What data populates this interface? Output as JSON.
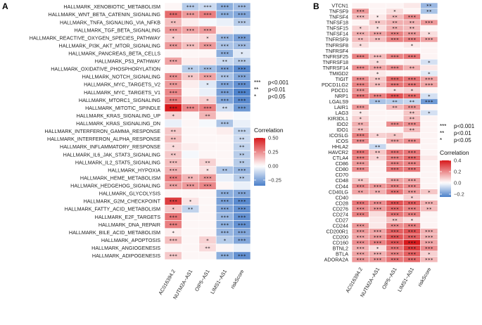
{
  "colors": {
    "high": "#d7191c",
    "mid": "#ffffff",
    "low": "#4a7fc9"
  },
  "chart_data": [
    {
      "type": "heatmap",
      "panel": "A",
      "rows": [
        "HALLMARK_XENOBIOTIC_METABOLISM",
        "HALLMARK_WNT_BETA_CATENIN_SIGNALING",
        "HALLMARK_TNFA_SIGNALING_VIA_NFKB",
        "HALLMARK_TGF_BETA_SIGNALING",
        "HALLMARK_REACTIVE_OXYGEN_SPECIES_PATHWAY",
        "HALLMARK_PI3K_AKT_MTOR_SIGNALING",
        "HALLMARK_PANCREAS_BETA_CELLS",
        "HALLMARK_P53_PATHWAY",
        "HALLMARK_OXIDATIVE_PHOSPHORYLATION",
        "HALLMARK_NOTCH_SIGNALING",
        "HALLMARK_MYC_TARGETS_V2",
        "HALLMARK_MYC_TARGETS_V1",
        "HALLMARK_MTORC1_SIGNALING",
        "HALLMARK_MITOTIC_SPINDLE",
        "HALLMARK_KRAS_SIGNALING_UP",
        "HALLMARK_KRAS_SIGNALING_DN",
        "HALLMARK_INTERFERON_GAMMA_RESPONSE",
        "HALLMARK_INTERFERON_ALPHA_RESPONSE",
        "HALLMARK_INFLAMMATORY_RESPONSE",
        "HALLMARK_IL6_JAK_STAT3_SIGNALING",
        "HALLMARK_IL2_STAT5_SIGNALING",
        "HALLMARK_HYPOXIA",
        "HALLMARK_HEME_METABOLISM",
        "HALLMARK_HEDGEHOG_SIGNALING",
        "HALLMARK_GLYCOLYSIS",
        "HALLMARK_G2M_CHECKPOINT",
        "HALLMARK_FATTY_ACID_METABOLISM",
        "HALLMARK_E2F_TARGETS",
        "HALLMARK_DNA_REPAIR",
        "HALLMARK_BILE_ACID_METABOLISM",
        "HALLMARK_APOPTOSIS",
        "HALLMARK_ANGIOGENESIS",
        "HALLMARK_ADIPOGENESIS"
      ],
      "columns": [
        "AC016394.2",
        "NUTM2A−AS1",
        "OIP5−AS1",
        "LIMS1−AS1",
        "riskScore"
      ],
      "values": [
        [
          0.02,
          -0.14,
          -0.1,
          -0.22,
          -0.18
        ],
        [
          0.32,
          0.22,
          0.28,
          -0.22,
          -0.24
        ],
        [
          0.14,
          0.04,
          -0.02,
          -0.04,
          -0.14
        ],
        [
          0.22,
          0.2,
          0.22,
          0.04,
          -0.04
        ],
        [
          0.1,
          0.06,
          0.08,
          -0.2,
          -0.26
        ],
        [
          0.22,
          0.14,
          0.22,
          -0.16,
          -0.18
        ],
        [
          0.02,
          0.02,
          0.02,
          -0.22,
          -0.06
        ],
        [
          0.2,
          0.04,
          0.06,
          -0.1,
          -0.14
        ],
        [
          0.02,
          -0.14,
          -0.18,
          -0.25,
          -0.32
        ],
        [
          0.24,
          0.12,
          0.2,
          -0.16,
          -0.24
        ],
        [
          0.22,
          0.04,
          -0.06,
          -0.24,
          -0.3
        ],
        [
          0.26,
          0.02,
          -0.04,
          -0.26,
          -0.34
        ],
        [
          0.28,
          0.06,
          0.1,
          -0.24,
          -0.32
        ],
        [
          0.5,
          0.26,
          0.28,
          -0.1,
          -0.28
        ],
        [
          0.1,
          0.02,
          0.16,
          0.02,
          -0.02
        ],
        [
          -0.04,
          0.02,
          -0.02,
          -0.16,
          -0.04
        ],
        [
          0.12,
          0.02,
          0.02,
          0.04,
          -0.12
        ],
        [
          0.14,
          0.02,
          0.02,
          0.02,
          -0.1
        ],
        [
          0.08,
          0.04,
          0.02,
          0.02,
          -0.12
        ],
        [
          0.12,
          -0.02,
          0.02,
          0.02,
          -0.14
        ],
        [
          0.14,
          0.02,
          0.1,
          0.02,
          -0.14
        ],
        [
          0.16,
          0.02,
          0.06,
          -0.16,
          -0.2
        ],
        [
          0.28,
          0.16,
          0.22,
          -0.04,
          -0.14
        ],
        [
          0.2,
          0.22,
          0.26,
          0.02,
          -0.04
        ],
        [
          0.02,
          0.02,
          0.02,
          -0.22,
          -0.24
        ],
        [
          0.42,
          0.06,
          0.02,
          -0.26,
          -0.32
        ],
        [
          0.12,
          -0.12,
          0.02,
          -0.24,
          -0.3
        ],
        [
          0.3,
          0.02,
          0.02,
          -0.2,
          -0.3
        ],
        [
          0.28,
          0.02,
          0.02,
          -0.22,
          -0.3
        ],
        [
          0.04,
          0.02,
          0.02,
          -0.2,
          -0.24
        ],
        [
          0.14,
          0.02,
          0.1,
          -0.14,
          -0.24
        ],
        [
          0.02,
          0.02,
          0.08,
          0.02,
          -0.04
        ],
        [
          0.12,
          0.02,
          0.02,
          -0.22,
          -0.3
        ]
      ],
      "stars": [
        [
          "",
          "***",
          "***",
          "***",
          "***"
        ],
        [
          "***",
          "***",
          "***",
          "***",
          "***"
        ],
        [
          "**",
          "",
          "",
          "",
          "***"
        ],
        [
          "***",
          "***",
          "***",
          "",
          ""
        ],
        [
          "*",
          "",
          "*",
          "***",
          "***"
        ],
        [
          "***",
          "***",
          "***",
          "***",
          "***"
        ],
        [
          "",
          "",
          "",
          "***",
          "*"
        ],
        [
          "***",
          "",
          "",
          "**",
          "***"
        ],
        [
          "",
          "**",
          "***",
          "***",
          "***"
        ],
        [
          "***",
          "**",
          "***",
          "***",
          "***"
        ],
        [
          "***",
          "",
          "*",
          "***",
          "***"
        ],
        [
          "***",
          "",
          "",
          "***",
          "***"
        ],
        [
          "***",
          "",
          "*",
          "***",
          "***"
        ],
        [
          "***",
          "***",
          "***",
          "**",
          "***"
        ],
        [
          "*",
          "",
          "**",
          "",
          ""
        ],
        [
          "",
          "",
          "",
          "***",
          ""
        ],
        [
          "**",
          "",
          "",
          "",
          "***"
        ],
        [
          "**",
          "",
          "",
          "",
          "**"
        ],
        [
          "*",
          "",
          "",
          "",
          "**"
        ],
        [
          "**",
          "",
          "",
          "",
          "**"
        ],
        [
          "***",
          "",
          "**",
          "",
          "**"
        ],
        [
          "***",
          "",
          "*",
          "**",
          "***"
        ],
        [
          "***",
          "**",
          "***",
          "",
          "**"
        ],
        [
          "***",
          "***",
          "***",
          "",
          ""
        ],
        [
          "",
          "",
          "",
          "***",
          "***"
        ],
        [
          "***",
          "*",
          "",
          "***",
          "***"
        ],
        [
          "*",
          "**",
          "",
          "***",
          "***"
        ],
        [
          "***",
          "",
          "",
          "***",
          "***"
        ],
        [
          "***",
          "",
          "",
          "***",
          "***"
        ],
        [
          "*",
          "",
          "",
          "***",
          "***"
        ],
        [
          "***",
          "",
          "*",
          "*",
          "***"
        ],
        [
          "",
          "",
          "**",
          "",
          ""
        ],
        [
          "***",
          "",
          "",
          "***",
          "***"
        ]
      ],
      "legend": {
        "title": "Correlation",
        "ticks": [
          0.5,
          0.25,
          0.0,
          -0.25
        ],
        "tick_labels": [
          "0.50",
          "0.25",
          "0.00",
          "−0.25"
        ],
        "range": [
          -0.35,
          0.5
        ]
      },
      "sig_legend": [
        {
          "stars": "***",
          "label": "p<0.001"
        },
        {
          "stars": "**",
          "label": "p<0.01"
        },
        {
          "stars": "*",
          "label": "p<0.05"
        }
      ]
    },
    {
      "type": "heatmap",
      "panel": "B",
      "rows": [
        "VTCN1",
        "TNFSF9",
        "TNFSF4",
        "TNFSF18",
        "TNFSF15",
        "TNFSF14",
        "TNFRSF9",
        "TNFRSF8",
        "TNFRSF4",
        "TNFRSF25",
        "TNFRSF18",
        "TNFRSF14",
        "TMIGD2",
        "TIGIT",
        "PDCD1LG2",
        "PDCD1",
        "NRP1",
        "LGALS9",
        "LAIR1",
        "LAG3",
        "KIR3DL1",
        "IDO2",
        "IDO1",
        "ICOSLG",
        "ICOS",
        "HHLA2",
        "HAVCR2",
        "CTLA4",
        "CD86",
        "CD80",
        "CD70",
        "CD48",
        "CD44",
        "CD40LG",
        "CD40",
        "CD28",
        "CD276",
        "CD274",
        "CD27",
        "CD244",
        "CD200R1",
        "CD200",
        "CD160",
        "BTNL2",
        "BTLA",
        "ADORA2A"
      ],
      "columns": [
        "AC016394.2",
        "NUTM2A−AS1",
        "OIP5−AS1",
        "LIMS1−AS1",
        "riskScore"
      ],
      "values": [
        [
          0.02,
          0.02,
          0.02,
          0.04,
          -0.14
        ],
        [
          0.18,
          0.02,
          0.06,
          0.02,
          -0.12
        ],
        [
          0.12,
          0.04,
          0.12,
          0.2,
          0.02
        ],
        [
          0.02,
          0.1,
          0.14,
          0.14,
          0.18
        ],
        [
          0.08,
          0.06,
          0.14,
          0.12,
          0.02
        ],
        [
          0.14,
          0.16,
          0.22,
          0.18,
          0.06
        ],
        [
          0.12,
          0.12,
          0.22,
          0.22,
          0.16
        ],
        [
          0.06,
          0.02,
          0.02,
          0.04,
          0.02
        ],
        [
          0.02,
          0.02,
          0.02,
          0.02,
          0.02
        ],
        [
          0.22,
          0.12,
          0.22,
          0.24,
          0.02
        ],
        [
          0.02,
          0.06,
          0.02,
          0.04,
          -0.06
        ],
        [
          0.2,
          0.16,
          0.2,
          0.14,
          0.04
        ],
        [
          0.02,
          0.04,
          0.02,
          0.02,
          -0.04
        ],
        [
          0.2,
          0.1,
          0.26,
          0.24,
          0.16
        ],
        [
          0.22,
          0.12,
          0.24,
          0.24,
          0.16
        ],
        [
          0.18,
          0.02,
          0.06,
          0.08,
          0.02
        ],
        [
          0.24,
          0.22,
          0.3,
          0.26,
          -0.06
        ],
        [
          0.02,
          -0.12,
          -0.1,
          -0.08,
          -0.2
        ],
        [
          0.18,
          0.02,
          0.12,
          0.18,
          0.02
        ],
        [
          0.04,
          0.02,
          0.02,
          0.1,
          -0.06
        ],
        [
          0.08,
          0.02,
          0.02,
          0.12,
          0.02
        ],
        [
          0.14,
          0.02,
          0.2,
          0.2,
          0.02
        ],
        [
          0.12,
          0.02,
          0.02,
          0.12,
          0.02
        ],
        [
          0.22,
          0.08,
          0.1,
          0.04,
          0.02
        ],
        [
          0.2,
          0.02,
          0.16,
          0.2,
          0.02
        ],
        [
          0.02,
          -0.08,
          0.02,
          0.02,
          0.02
        ],
        [
          0.24,
          0.1,
          0.24,
          0.24,
          0.02
        ],
        [
          0.22,
          0.08,
          0.22,
          0.26,
          0.04
        ],
        [
          0.18,
          0.02,
          0.22,
          0.22,
          0.02
        ],
        [
          0.2,
          0.02,
          0.24,
          0.24,
          0.02
        ],
        [
          0.02,
          0.02,
          0.02,
          0.02,
          0.02
        ],
        [
          0.1,
          0.02,
          0.16,
          0.16,
          0.02
        ],
        [
          0.2,
          0.18,
          0.22,
          0.2,
          0.02
        ],
        [
          0.16,
          0.14,
          0.24,
          0.18,
          0.1
        ],
        [
          0.02,
          0.02,
          0.02,
          0.08,
          0.02
        ],
        [
          0.24,
          0.2,
          0.3,
          0.28,
          0.14
        ],
        [
          0.2,
          0.18,
          0.26,
          0.22,
          0.12
        ],
        [
          0.22,
          0.06,
          0.24,
          0.22,
          0.02
        ],
        [
          0.02,
          0.04,
          0.1,
          0.06,
          0.02
        ],
        [
          0.18,
          0.04,
          0.2,
          0.22,
          0.02
        ],
        [
          0.18,
          0.16,
          0.28,
          0.3,
          0.14
        ],
        [
          0.16,
          0.18,
          0.3,
          0.28,
          0.14
        ],
        [
          0.2,
          0.22,
          0.3,
          0.4,
          0.16
        ],
        [
          0.14,
          0.06,
          0.24,
          0.34,
          0.2
        ],
        [
          0.16,
          0.14,
          0.22,
          0.28,
          0.08
        ],
        [
          0.18,
          0.18,
          0.24,
          0.26,
          0.12
        ]
      ],
      "stars": [
        [
          "",
          "",
          "",
          "",
          "**"
        ],
        [
          "***",
          "",
          "*",
          "",
          "**"
        ],
        [
          "***",
          "*",
          "**",
          "***",
          ""
        ],
        [
          "",
          "**",
          "**",
          "**",
          "***"
        ],
        [
          "*",
          "*",
          "**",
          "**",
          ""
        ],
        [
          "***",
          "***",
          "***",
          "***",
          "*"
        ],
        [
          "**",
          "**",
          "***",
          "***",
          "***"
        ],
        [
          "*",
          "",
          "",
          "*",
          ""
        ],
        [
          "",
          "",
          "",
          "",
          ""
        ],
        [
          "***",
          "***",
          "***",
          "***",
          ""
        ],
        [
          "",
          "*",
          "",
          "",
          "*"
        ],
        [
          "***",
          "***",
          "***",
          "**",
          ""
        ],
        [
          "",
          "*",
          "",
          "",
          "*"
        ],
        [
          "***",
          "**",
          "***",
          "***",
          "***"
        ],
        [
          "***",
          "**",
          "***",
          "***",
          "***"
        ],
        [
          "***",
          "",
          "*",
          "*",
          ""
        ],
        [
          "***",
          "***",
          "***",
          "***",
          "*"
        ],
        [
          "",
          "**",
          "**",
          "**",
          "***"
        ],
        [
          "***",
          "",
          "**",
          "***",
          ""
        ],
        [
          "*",
          "",
          "",
          "**",
          "*"
        ],
        [
          "*",
          "",
          "",
          "**",
          ""
        ],
        [
          "**",
          "",
          "***",
          "***",
          ""
        ],
        [
          "**",
          "",
          "",
          "**",
          ""
        ],
        [
          "***",
          "*",
          "*",
          "",
          ""
        ],
        [
          "***",
          "",
          "***",
          "***",
          ""
        ],
        [
          "",
          "**",
          "",
          "",
          ""
        ],
        [
          "***",
          "**",
          "***",
          "***",
          ""
        ],
        [
          "***",
          "*",
          "***",
          "***",
          ""
        ],
        [
          "***",
          "",
          "***",
          "***",
          ""
        ],
        [
          "***",
          "",
          "***",
          "***",
          ""
        ],
        [
          "",
          "",
          "",
          "",
          ""
        ],
        [
          "**",
          "",
          "***",
          "***",
          ""
        ],
        [
          "***",
          "***",
          "***",
          "***",
          ""
        ],
        [
          "**",
          "**",
          "***",
          "***",
          "*"
        ],
        [
          "",
          "",
          "",
          "*",
          ""
        ],
        [
          "***",
          "***",
          "***",
          "***",
          "***"
        ],
        [
          "***",
          "***",
          "***",
          "***",
          "**"
        ],
        [
          "***",
          "",
          "***",
          "***",
          ""
        ],
        [
          "",
          "",
          "**",
          "*",
          ""
        ],
        [
          "***",
          "",
          "***",
          "***",
          ""
        ],
        [
          "***",
          "***",
          "***",
          "***",
          "***"
        ],
        [
          "***",
          "***",
          "***",
          "***",
          "***"
        ],
        [
          "***",
          "***",
          "***",
          "***",
          "***"
        ],
        [
          "***",
          "*",
          "***",
          "***",
          "***"
        ],
        [
          "***",
          "***",
          "***",
          "***",
          "*"
        ],
        [
          "***",
          "***",
          "***",
          "***",
          "***"
        ]
      ],
      "legend": {
        "title": "Correlation",
        "ticks": [
          0.4,
          0.2,
          0.0,
          -0.2
        ],
        "tick_labels": [
          "0.4",
          "0.2",
          "0.0",
          "−0.2"
        ],
        "range": [
          -0.25,
          0.4
        ]
      },
      "sig_legend": [
        {
          "stars": "***",
          "label": "p<0.001"
        },
        {
          "stars": "**",
          "label": "p<0.01"
        },
        {
          "stars": "*",
          "label": "p<0.05"
        }
      ]
    }
  ]
}
